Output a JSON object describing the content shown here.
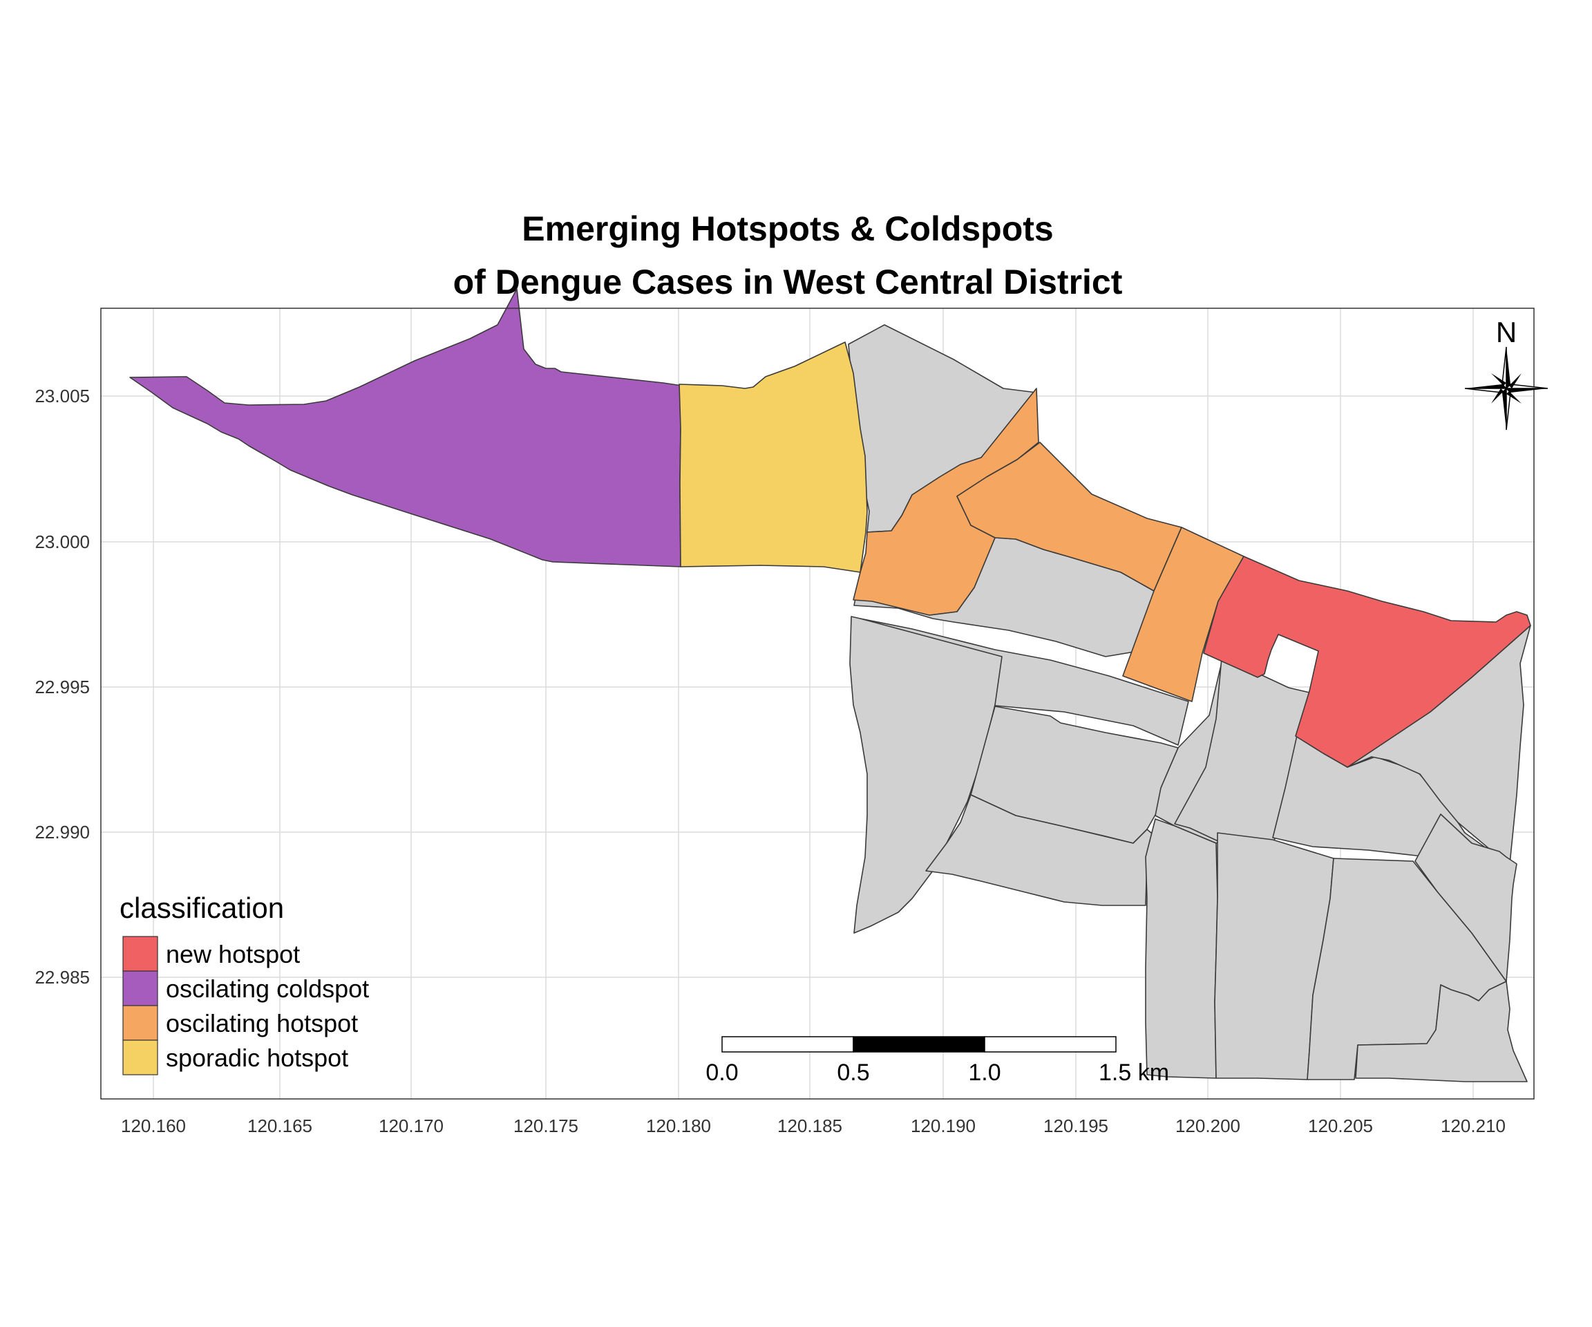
{
  "title": {
    "line1": "Emerging Hotspots & Coldspots",
    "line2": "of Dengue Cases in West Central District"
  },
  "axes": {
    "x_ticks": [
      "120.160",
      "120.165",
      "120.170",
      "120.175",
      "120.180",
      "120.185",
      "120.190",
      "120.195",
      "120.200",
      "120.205",
      "120.210"
    ],
    "y_ticks": [
      "23.005",
      "23.000",
      "22.995",
      "22.990",
      "22.985"
    ],
    "grid": true
  },
  "legend": {
    "title": "classification",
    "placement": "bottom-left",
    "items": [
      {
        "label": "new hotspot",
        "color": "#f06163"
      },
      {
        "label": "oscilating coldspot",
        "color": "#a65cbd"
      },
      {
        "label": "oscilating hotspot",
        "color": "#f5a761"
      },
      {
        "label": "sporadic hotspot",
        "color": "#f5d163"
      }
    ]
  },
  "unclassified_color": "#d1d1d1",
  "regions": [
    {
      "id": "west-strip",
      "classification": "oscilating coldspot"
    },
    {
      "id": "west-middle",
      "classification": "sporadic hotspot"
    },
    {
      "id": "central-a",
      "classification": "oscilating hotspot"
    },
    {
      "id": "central-b",
      "classification": "oscilating hotspot"
    },
    {
      "id": "central-c",
      "classification": "oscilating hotspot"
    },
    {
      "id": "east-north",
      "classification": "new hotspot"
    }
  ],
  "scale_bar": {
    "labels": [
      "0.0",
      "0.5",
      "1.0",
      "1.5 km"
    ]
  },
  "north_arrow": {
    "label": "N",
    "icon": "compass-star-icon"
  }
}
